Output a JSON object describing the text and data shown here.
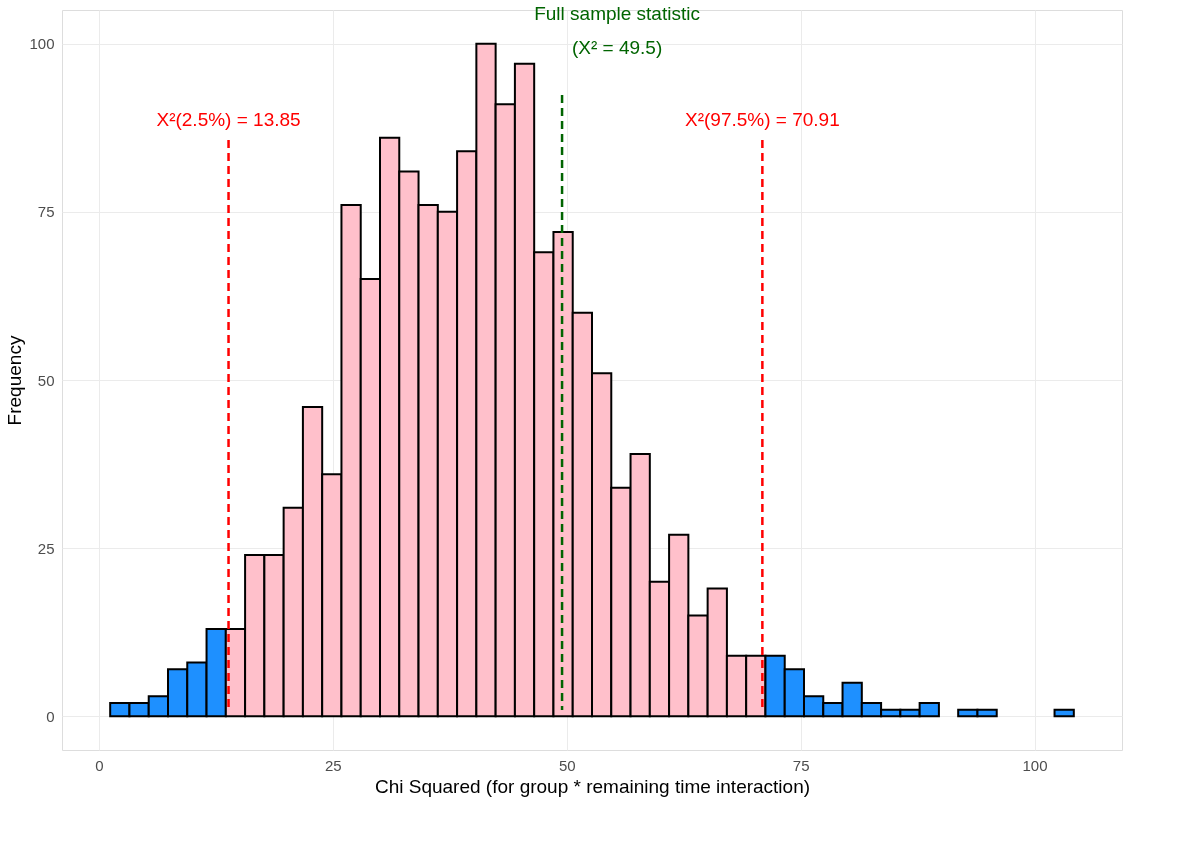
{
  "chart_data": {
    "type": "histogram",
    "xlabel": "Chi Squared (for group * remaining time interaction)",
    "ylabel": "Frequency",
    "bins": [
      1.2,
      3.26,
      5.32,
      7.38,
      9.44,
      11.5,
      13.56,
      15.62,
      17.68,
      19.74,
      21.8,
      23.86,
      25.92,
      27.98,
      30.04,
      32.1,
      34.16,
      36.22,
      38.28,
      40.34,
      42.4,
      44.46,
      46.52,
      48.58,
      50.64,
      52.7,
      54.76,
      56.82,
      58.88,
      60.94,
      63.0,
      65.06,
      67.12,
      69.18,
      71.24,
      73.3,
      75.36,
      77.42,
      79.48,
      81.54,
      83.6,
      85.66,
      87.72,
      89.78,
      91.84,
      93.9,
      95.96,
      98.02,
      100.08,
      102.14,
      104.2
    ],
    "values": [
      2,
      2,
      3,
      7,
      8,
      13,
      13,
      24,
      24,
      31,
      46,
      36,
      76,
      65,
      86,
      81,
      76,
      75,
      84,
      100,
      91,
      97,
      69,
      72,
      60,
      51,
      34,
      39,
      20,
      27,
      15,
      19,
      9,
      9,
      9,
      7,
      3,
      2,
      5,
      2,
      1,
      1,
      2,
      0,
      1,
      1,
      0,
      0,
      0,
      1
    ],
    "colors": [
      "#1e90ff",
      "#1e90ff",
      "#1e90ff",
      "#1e90ff",
      "#1e90ff",
      "#1e90ff",
      "#ffc0cb",
      "#ffc0cb",
      "#ffc0cb",
      "#ffc0cb",
      "#ffc0cb",
      "#ffc0cb",
      "#ffc0cb",
      "#ffc0cb",
      "#ffc0cb",
      "#ffc0cb",
      "#ffc0cb",
      "#ffc0cb",
      "#ffc0cb",
      "#ffc0cb",
      "#ffc0cb",
      "#ffc0cb",
      "#ffc0cb",
      "#ffc0cb",
      "#ffc0cb",
      "#ffc0cb",
      "#ffc0cb",
      "#ffc0cb",
      "#ffc0cb",
      "#ffc0cb",
      "#ffc0cb",
      "#ffc0cb",
      "#ffc0cb",
      "#ffc0cb",
      "#1e90ff",
      "#1e90ff",
      "#1e90ff",
      "#1e90ff",
      "#1e90ff",
      "#1e90ff",
      "#1e90ff",
      "#1e90ff",
      "#1e90ff",
      "#1e90ff",
      "#1e90ff",
      "#1e90ff",
      "#1e90ff",
      "#1e90ff",
      "#1e90ff",
      "#1e90ff"
    ],
    "xlim": [
      -3.95,
      109.35
    ],
    "xticks": [
      0,
      25,
      50,
      75,
      100
    ],
    "ylim": [
      -5,
      105
    ],
    "yticks": [
      0,
      25,
      50,
      75,
      100
    ],
    "grid": true,
    "ref_lines": [
      {
        "axis": "x",
        "value": 13.85,
        "label": "X²(2.5%) = 13.85",
        "color": "#ff0000",
        "line_style": "dashed"
      },
      {
        "axis": "x",
        "value": 70.91,
        "label": "X²(97.5%) = 70.91",
        "color": "#ff0000",
        "line_style": "dashed"
      },
      {
        "axis": "x",
        "value": 49.5,
        "label": "Full sample statistic\n(X² = 49.5)",
        "color": "#006400",
        "line_style": "dashed"
      }
    ]
  }
}
